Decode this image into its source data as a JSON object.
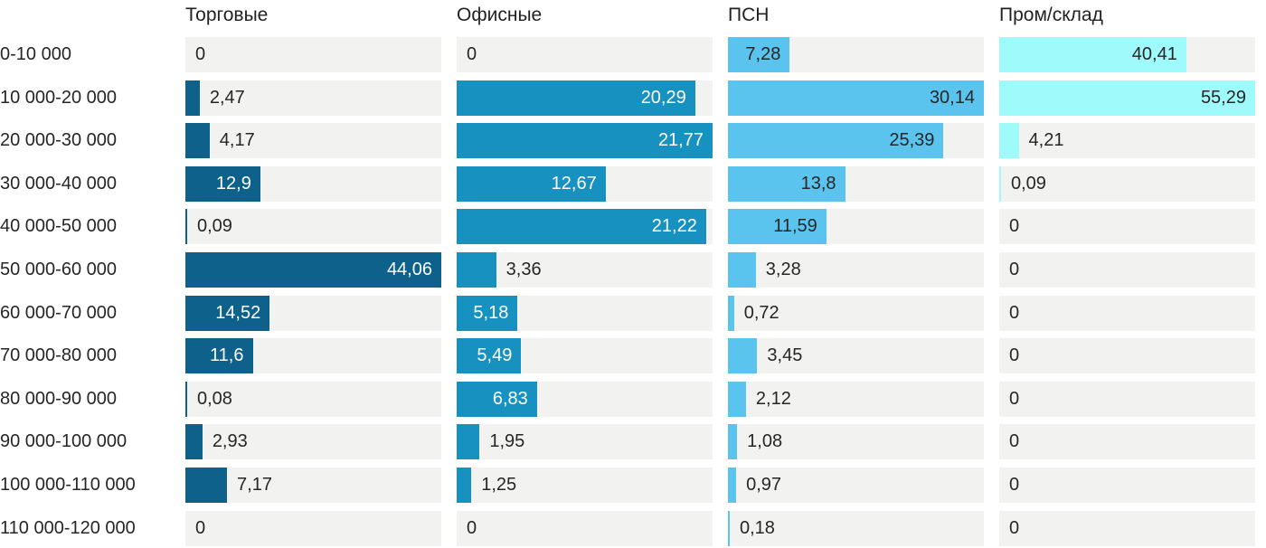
{
  "chart_data": {
    "type": "bar",
    "orientation": "horizontal",
    "title": "",
    "xlabel": "",
    "ylabel": "",
    "value_format": "decimal-comma",
    "scaling": "per-column-max",
    "grid": false,
    "legend_position": "column-headers",
    "categories": [
      "0-10 000",
      "10 000-20 000",
      "20 000-30 000",
      "30 000-40 000",
      "40 000-50 000",
      "50 000-60 000",
      "60 000-70 000",
      "70 000-80 000",
      "80 000-90 000",
      "90 000-100 000",
      "100 000-110 000",
      "110 000-120 000"
    ],
    "series": [
      {
        "name": "Торговые",
        "color": "#0e618a",
        "label_inside_color": "#ffffff",
        "values": [
          0,
          2.47,
          4.17,
          12.9,
          0.09,
          44.06,
          14.52,
          11.6,
          0.08,
          2.93,
          7.17,
          0
        ]
      },
      {
        "name": "Офисные",
        "color": "#1791bf",
        "label_inside_color": "#ffffff",
        "values": [
          0,
          20.29,
          21.77,
          12.67,
          21.22,
          3.36,
          5.18,
          5.49,
          6.83,
          1.95,
          1.25,
          0
        ]
      },
      {
        "name": "ПСН",
        "color": "#5ac4ef",
        "label_inside_color": "#262626",
        "values": [
          7.28,
          30.14,
          25.39,
          13.8,
          11.59,
          3.28,
          0.72,
          3.45,
          2.12,
          1.08,
          0.97,
          0.18
        ]
      },
      {
        "name": "Пром/склад",
        "color": "#9ffbfb",
        "label_inside_color": "#262626",
        "values": [
          40.41,
          55.29,
          4.21,
          0.09,
          0,
          0,
          0,
          0,
          0,
          0,
          0,
          0
        ]
      }
    ],
    "colors": {
      "track": "#f2f2f0",
      "text": "#262626",
      "header_text": "#222222",
      "background": "#ffffff"
    }
  }
}
